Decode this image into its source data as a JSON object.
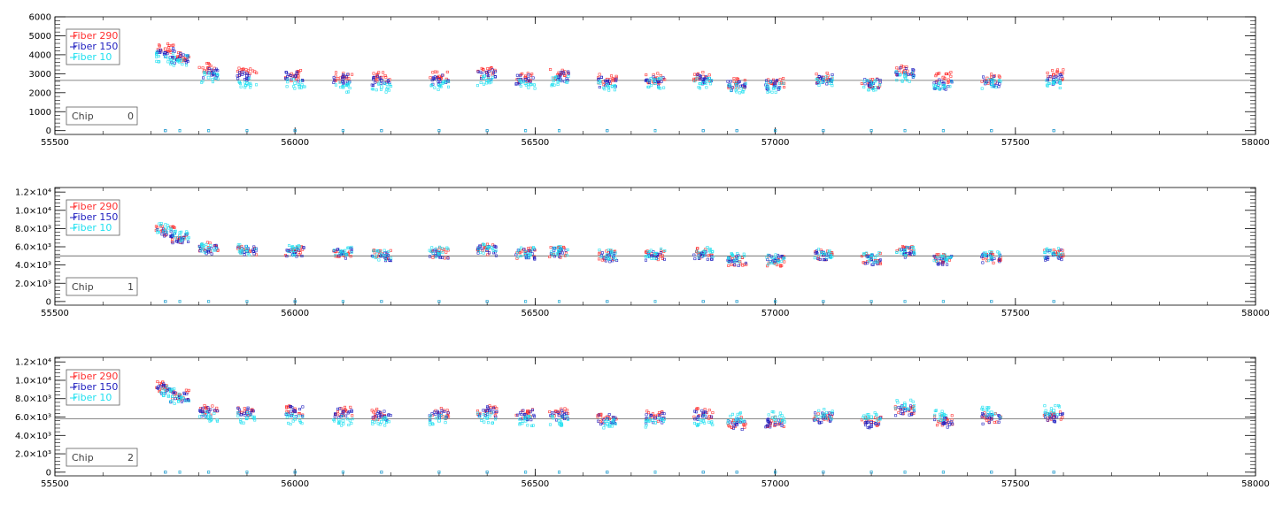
{
  "colors": {
    "fiber_290": "#ff3030",
    "fiber_150": "#2020c0",
    "fiber_10": "#20e0f0",
    "axis": "#000000",
    "ref_line": "#606060"
  },
  "chart_data": [
    {
      "type": "scatter",
      "title": "",
      "xlabel": "",
      "ylabel": "",
      "xlim": [
        55500,
        58000
      ],
      "ylim": [
        -200,
        6000
      ],
      "x_ticks": [
        55500,
        56000,
        56500,
        57000,
        57500,
        58000
      ],
      "x_tick_labels": [
        "55500",
        "56000",
        "56500",
        "57000",
        "57500",
        "58000"
      ],
      "y_ticks": [
        0,
        1000,
        2000,
        3000,
        4000,
        5000,
        6000
      ],
      "y_tick_labels": [
        "0",
        "1000",
        "2000",
        "3000",
        "4000",
        "5000",
        "6000"
      ],
      "reference_line": 2650,
      "chip_label": "Chip",
      "chip_number": "0",
      "legend": [
        "Fiber 290",
        "Fiber 150",
        "Fiber 10"
      ],
      "series": [
        {
          "name": "Fiber 290",
          "x": [
            55730,
            55760,
            55820,
            55900,
            56000,
            56100,
            56180,
            56300,
            56400,
            56480,
            56550,
            56650,
            56750,
            56850,
            56920,
            57000,
            57100,
            57200,
            57270,
            57350,
            57450,
            57580
          ],
          "y": [
            4300,
            3900,
            3300,
            3050,
            2900,
            2850,
            2800,
            2850,
            3050,
            2800,
            2950,
            2700,
            2750,
            2850,
            2500,
            2500,
            2800,
            2550,
            3150,
            2800,
            2700,
            2950
          ]
        },
        {
          "name": "Fiber 150",
          "x": [
            55730,
            55760,
            55820,
            55900,
            56000,
            56100,
            56180,
            56300,
            56400,
            56480,
            56550,
            56650,
            56750,
            56850,
            56920,
            57000,
            57100,
            57200,
            57270,
            57350,
            57450,
            57580
          ],
          "y": [
            4100,
            3800,
            3050,
            2900,
            2850,
            2750,
            2650,
            2700,
            2950,
            2700,
            2850,
            2550,
            2600,
            2700,
            2400,
            2400,
            2700,
            2500,
            3050,
            2450,
            2600,
            2700
          ]
        },
        {
          "name": "Fiber 10",
          "x": [
            55730,
            55760,
            55820,
            55900,
            56000,
            56100,
            56180,
            56300,
            56400,
            56480,
            56550,
            56650,
            56750,
            56850,
            56920,
            57000,
            57100,
            57200,
            57270,
            57350,
            57450,
            57580
          ],
          "y": [
            3900,
            3700,
            2800,
            2500,
            2500,
            2300,
            2300,
            2400,
            2650,
            2500,
            2650,
            2400,
            2500,
            2500,
            2250,
            2300,
            2600,
            2400,
            2850,
            2350,
            2450,
            2500
          ]
        }
      ]
    },
    {
      "type": "scatter",
      "title": "",
      "xlabel": "",
      "ylabel": "",
      "xlim": [
        55500,
        58000
      ],
      "ylim": [
        -400,
        12500
      ],
      "x_ticks": [
        55500,
        56000,
        56500,
        57000,
        57500,
        58000
      ],
      "x_tick_labels": [
        "55500",
        "56000",
        "56500",
        "57000",
        "57500",
        "58000"
      ],
      "y_ticks": [
        0,
        2000,
        4000,
        6000,
        8000,
        10000,
        12000
      ],
      "y_tick_labels": [
        "0",
        "2.0×10³",
        "4.0×10³",
        "6.0×10³",
        "8.0×10³",
        "1.0×10⁴",
        "1.2×10⁴"
      ],
      "reference_line": 5000,
      "chip_label": "Chip",
      "chip_number": "1",
      "legend": [
        "Fiber 290",
        "Fiber 150",
        "Fiber 10"
      ],
      "series": [
        {
          "name": "Fiber 290",
          "x": [
            55730,
            55760,
            55820,
            55900,
            56000,
            56100,
            56180,
            56300,
            56400,
            56480,
            56550,
            56650,
            56750,
            56850,
            56920,
            57000,
            57100,
            57200,
            57270,
            57350,
            57450,
            57580
          ],
          "y": [
            7800,
            7000,
            5900,
            5600,
            5500,
            5400,
            5200,
            5300,
            5700,
            5300,
            5400,
            5000,
            5100,
            5300,
            4500,
            4400,
            5100,
            4700,
            5500,
            4600,
            4800,
            5200
          ]
        },
        {
          "name": "Fiber 150",
          "x": [
            55730,
            55760,
            55820,
            55900,
            56000,
            56100,
            56180,
            56300,
            56400,
            56480,
            56550,
            56650,
            56750,
            56850,
            56920,
            57000,
            57100,
            57200,
            57270,
            57350,
            57450,
            57580
          ],
          "y": [
            7600,
            6900,
            5700,
            5500,
            5400,
            5300,
            5000,
            5200,
            5600,
            5200,
            5300,
            4900,
            5000,
            5200,
            4500,
            4500,
            5100,
            4600,
            5400,
            4500,
            4700,
            5100
          ]
        },
        {
          "name": "Fiber 10",
          "x": [
            55730,
            55760,
            55820,
            55900,
            56000,
            56100,
            56180,
            56300,
            56400,
            56480,
            56550,
            56650,
            56750,
            56850,
            56920,
            57000,
            57100,
            57200,
            57270,
            57350,
            57450,
            57580
          ],
          "y": [
            8000,
            7200,
            5800,
            5700,
            5600,
            5500,
            5100,
            5400,
            5800,
            5400,
            5500,
            5100,
            5200,
            5400,
            4700,
            4600,
            5300,
            4800,
            5600,
            4700,
            4900,
            5300
          ]
        }
      ]
    },
    {
      "type": "scatter",
      "title": "",
      "xlabel": "",
      "ylabel": "",
      "xlim": [
        55500,
        58000
      ],
      "ylim": [
        -400,
        12500
      ],
      "x_ticks": [
        55500,
        56000,
        56500,
        57000,
        57500,
        58000
      ],
      "x_tick_labels": [
        "55500",
        "56000",
        "56500",
        "57000",
        "57500",
        "58000"
      ],
      "y_ticks": [
        0,
        2000,
        4000,
        6000,
        8000,
        10000,
        12000
      ],
      "y_tick_labels": [
        "0",
        "2.0×10³",
        "4.0×10³",
        "6.0×10³",
        "8.0×10³",
        "1.0×10⁴",
        "1.2×10⁴"
      ],
      "reference_line": 5800,
      "chip_label": "Chip",
      "chip_number": "2",
      "legend": [
        "Fiber 290",
        "Fiber 150",
        "Fiber 10"
      ],
      "series": [
        {
          "name": "Fiber 290",
          "x": [
            55730,
            55760,
            55820,
            55900,
            56000,
            56100,
            56180,
            56300,
            56400,
            56480,
            56550,
            56650,
            56750,
            56850,
            56920,
            57000,
            57100,
            57200,
            57270,
            57350,
            57450,
            57580
          ],
          "y": [
            9300,
            8400,
            6800,
            6600,
            6700,
            6600,
            6300,
            6400,
            6700,
            6300,
            6400,
            6000,
            6100,
            6400,
            5400,
            5400,
            6100,
            5500,
            6900,
            5600,
            6000,
            6200
          ]
        },
        {
          "name": "Fiber 150",
          "x": [
            55730,
            55760,
            55820,
            55900,
            56000,
            56100,
            56180,
            56300,
            56400,
            56480,
            56550,
            56650,
            56750,
            56850,
            56920,
            57000,
            57100,
            57200,
            57270,
            57350,
            57450,
            57580
          ],
          "y": [
            9100,
            8200,
            6600,
            6500,
            6600,
            6500,
            6100,
            6200,
            6600,
            6200,
            6200,
            5800,
            5900,
            6200,
            5200,
            5200,
            5900,
            5400,
            6700,
            5400,
            5800,
            6000
          ]
        },
        {
          "name": "Fiber 10",
          "x": [
            55730,
            55760,
            55820,
            55900,
            56000,
            56100,
            56180,
            56300,
            56400,
            56480,
            56550,
            56650,
            56750,
            56850,
            56920,
            57000,
            57100,
            57200,
            57270,
            57350,
            57450,
            57580
          ],
          "y": [
            8800,
            8000,
            6000,
            5900,
            5800,
            5600,
            5500,
            5600,
            5900,
            5600,
            5600,
            5300,
            5400,
            5600,
            5900,
            6000,
            6300,
            6000,
            7300,
            6200,
            6500,
            6700
          ]
        }
      ]
    }
  ]
}
